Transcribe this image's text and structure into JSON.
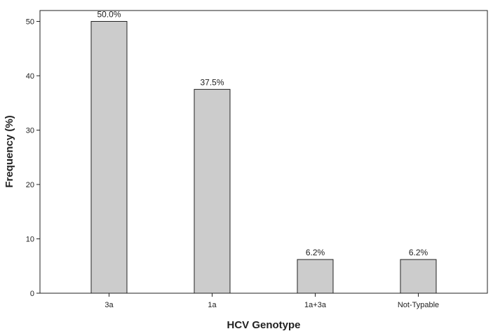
{
  "chart_data": {
    "type": "bar",
    "title": "",
    "xlabel": "HCV Genotype",
    "ylabel": "Frequency (%)",
    "categories": [
      "3a",
      "1a",
      "1a+3a",
      "Not-Typable"
    ],
    "values": [
      50.0,
      37.5,
      6.2,
      6.2
    ],
    "data_labels": [
      "50.0%",
      "37.5%",
      "6.2%",
      "6.2%"
    ],
    "ylim": [
      0,
      52
    ],
    "yticks": [
      0,
      10,
      20,
      30,
      40,
      50
    ],
    "grid": false,
    "legend": "none",
    "colors": {
      "bar_fill": "#cccccc",
      "bar_stroke": "#222222",
      "axis": "#222222"
    }
  }
}
